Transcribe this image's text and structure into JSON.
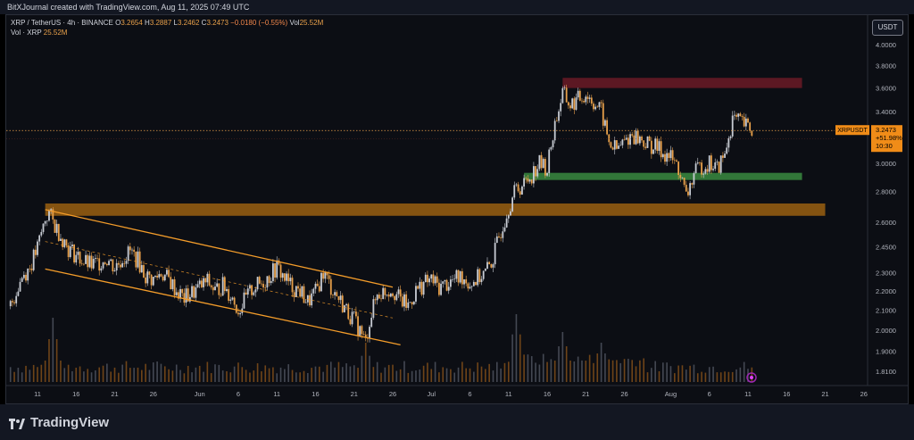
{
  "header": {
    "title": "BitXJournal created with TradingView.com, Aug 11, 2025 07:49 UTC"
  },
  "legend": {
    "symbol": "XRP / TetherUS · 4h · BINANCE",
    "o_label": "O",
    "o": "3.2654",
    "h_label": "H",
    "h": "3.2887",
    "l_label": "L",
    "l": "3.2462",
    "c_label": "C",
    "c": "3.2473",
    "change": "−0.0180 (−0.55%)",
    "vol_label": "Vol",
    "vol": "25.52M",
    "vol_line_label": "Vol · XRP",
    "vol_line_value": "25.52M"
  },
  "currency_button": "USDT",
  "price_label": {
    "symbol": "XRPUSDT",
    "price": "3.2473",
    "change": "+51.98%",
    "countdown": "10:30"
  },
  "brand": "TradingView",
  "colors": {
    "up": "#c8ccd4",
    "down": "#e8a04a",
    "channel": "#f39c2a",
    "resistance_zone": "#6b1a26",
    "support_zone": "#3a8a3f",
    "breakout_zone": "#9a5f10"
  },
  "chart_data": {
    "type": "candlestick",
    "symbol": "XRPUSDT",
    "timeframe": "4h",
    "y_scale": "log",
    "y_ticks": [
      "4.0000",
      "3.8000",
      "3.6000",
      "3.4000",
      "3.2000",
      "3.0000",
      "2.8000",
      "2.6000",
      "2.4500",
      "2.3000",
      "2.2000",
      "2.1000",
      "2.0000",
      "1.9000",
      "1.8100"
    ],
    "x_ticks": [
      {
        "label": "11",
        "day": 11
      },
      {
        "label": "16",
        "day": 16
      },
      {
        "label": "21",
        "day": 21
      },
      {
        "label": "26",
        "day": 26
      },
      {
        "label": "Jun",
        "day": 32
      },
      {
        "label": "6",
        "day": 37
      },
      {
        "label": "11",
        "day": 42
      },
      {
        "label": "16",
        "day": 47
      },
      {
        "label": "21",
        "day": 52
      },
      {
        "label": "26",
        "day": 57
      },
      {
        "label": "Jul",
        "day": 62
      },
      {
        "label": "6",
        "day": 67
      },
      {
        "label": "11",
        "day": 72
      },
      {
        "label": "16",
        "day": 77
      },
      {
        "label": "21",
        "day": 82
      },
      {
        "label": "26",
        "day": 87
      },
      {
        "label": "Aug",
        "day": 93
      },
      {
        "label": "6",
        "day": 98
      },
      {
        "label": "11",
        "day": 103
      },
      {
        "label": "16",
        "day": 108
      },
      {
        "label": "21",
        "day": 113
      },
      {
        "label": "26",
        "day": 118
      }
    ],
    "price_path": [
      [
        7.5,
        2.12
      ],
      [
        9,
        2.28
      ],
      [
        10,
        2.33
      ],
      [
        11,
        2.44
      ],
      [
        12,
        2.62
      ],
      [
        12.5,
        2.66
      ],
      [
        13,
        2.6
      ],
      [
        14,
        2.52
      ],
      [
        15,
        2.44
      ],
      [
        16,
        2.4
      ],
      [
        17,
        2.36
      ],
      [
        18,
        2.34
      ],
      [
        19,
        2.36
      ],
      [
        20,
        2.38
      ],
      [
        21,
        2.33
      ],
      [
        22,
        2.38
      ],
      [
        23,
        2.42
      ],
      [
        24,
        2.37
      ],
      [
        25,
        2.28
      ],
      [
        26,
        2.26
      ],
      [
        27,
        2.3
      ],
      [
        28,
        2.26
      ],
      [
        29,
        2.2
      ],
      [
        30,
        2.16
      ],
      [
        31,
        2.19
      ],
      [
        32,
        2.22
      ],
      [
        33,
        2.25
      ],
      [
        34,
        2.2
      ],
      [
        35,
        2.23
      ],
      [
        36,
        2.18
      ],
      [
        37,
        2.1
      ],
      [
        38,
        2.16
      ],
      [
        39,
        2.22
      ],
      [
        40,
        2.24
      ],
      [
        41,
        2.28
      ],
      [
        42,
        2.33
      ],
      [
        43,
        2.27
      ],
      [
        44,
        2.22
      ],
      [
        45,
        2.2
      ],
      [
        46,
        2.14
      ],
      [
        47,
        2.19
      ],
      [
        48,
        2.3
      ],
      [
        49,
        2.22
      ],
      [
        50,
        2.16
      ],
      [
        51,
        2.1
      ],
      [
        52,
        2.05
      ],
      [
        53,
        1.98
      ],
      [
        53.5,
        1.94
      ],
      [
        54,
        2.05
      ],
      [
        55,
        2.18
      ],
      [
        56,
        2.2
      ],
      [
        57,
        2.21
      ],
      [
        58,
        2.15
      ],
      [
        59,
        2.12
      ],
      [
        60,
        2.2
      ],
      [
        61,
        2.24
      ],
      [
        62,
        2.26
      ],
      [
        63,
        2.22
      ],
      [
        64,
        2.24
      ],
      [
        65,
        2.26
      ],
      [
        66,
        2.28
      ],
      [
        67,
        2.24
      ],
      [
        68,
        2.27
      ],
      [
        69,
        2.3
      ],
      [
        70,
        2.38
      ],
      [
        71,
        2.55
      ],
      [
        72,
        2.7
      ],
      [
        73,
        2.82
      ],
      [
        74,
        2.85
      ],
      [
        75,
        2.92
      ],
      [
        76,
        3.0
      ],
      [
        77,
        2.96
      ],
      [
        78,
        3.3
      ],
      [
        79,
        3.55
      ],
      [
        80,
        3.45
      ],
      [
        81,
        3.5
      ],
      [
        82,
        3.55
      ],
      [
        83,
        3.48
      ],
      [
        84,
        3.4
      ],
      [
        85,
        3.15
      ],
      [
        86,
        3.1
      ],
      [
        87,
        3.16
      ],
      [
        88,
        3.22
      ],
      [
        89,
        3.18
      ],
      [
        90,
        3.14
      ],
      [
        91,
        3.12
      ],
      [
        92,
        3.08
      ],
      [
        93,
        3.04
      ],
      [
        94,
        2.96
      ],
      [
        95,
        2.76
      ],
      [
        96,
        2.92
      ],
      [
        97,
        2.98
      ],
      [
        98,
        3.0
      ],
      [
        99,
        2.96
      ],
      [
        100,
        3.06
      ],
      [
        101,
        3.34
      ],
      [
        102,
        3.31
      ],
      [
        103,
        3.27
      ],
      [
        103.5,
        3.2473
      ]
    ],
    "channel": {
      "upper": [
        [
          12,
          2.68
        ],
        [
          57,
          2.22
        ]
      ],
      "lower": [
        [
          12,
          2.32
        ],
        [
          58,
          1.93
        ]
      ],
      "mid": [
        [
          12,
          2.48
        ],
        [
          57,
          2.06
        ]
      ]
    },
    "zones": [
      {
        "name": "resistance",
        "x_start": 79,
        "x_end": 110,
        "y_low": 3.6,
        "y_high": 3.69
      },
      {
        "name": "support",
        "x_start": 74,
        "x_end": 110,
        "y_low": 2.88,
        "y_high": 2.93
      },
      {
        "name": "breakout",
        "x_start": 12,
        "x_end": 113,
        "y_low": 2.64,
        "y_high": 2.72
      }
    ],
    "last_price": 3.2473,
    "volume_spikes": [
      {
        "day": 13,
        "rel": 0.9
      },
      {
        "day": 53.5,
        "rel": 0.55
      },
      {
        "day": 73,
        "rel": 0.85
      },
      {
        "day": 79,
        "rel": 0.6
      },
      {
        "day": 84,
        "rel": 0.45
      }
    ]
  }
}
